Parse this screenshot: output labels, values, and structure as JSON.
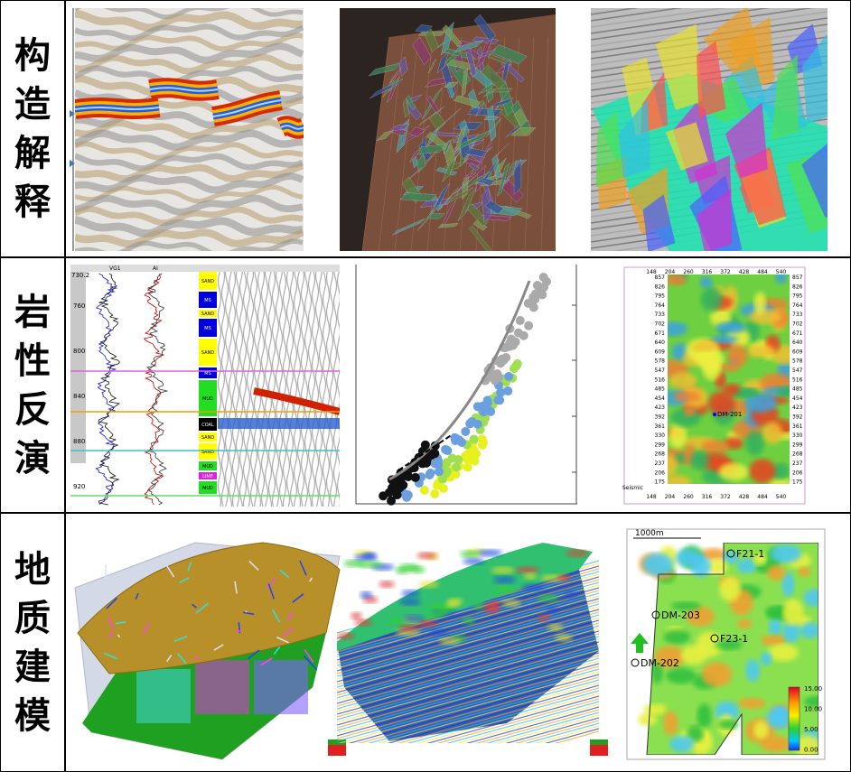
{
  "rows": [
    {
      "label": "构造解释"
    },
    {
      "label": "岩性反演",
      "well_log": {
        "top_depth": "730.2",
        "headers": [
          "VG1",
          "AI"
        ],
        "depth_ticks": [
          "760",
          "800",
          "840",
          "880",
          "920"
        ],
        "lithology": [
          "SAND",
          "MS",
          "SAND",
          "MS",
          "SAND",
          "MS",
          "MUD",
          "COAL",
          "SAND",
          "SAND",
          "MUD",
          "LIME",
          "MUD"
        ]
      },
      "map": {
        "x_ticks": [
          "148",
          "204",
          "260",
          "316",
          "372",
          "428",
          "484",
          "540"
        ],
        "y_ticks": [
          "857",
          "826",
          "795",
          "764",
          "733",
          "702",
          "671",
          "640",
          "609",
          "578",
          "547",
          "516",
          "485",
          "454",
          "423",
          "392",
          "361",
          "330",
          "299",
          "268",
          "237",
          "206",
          "175"
        ],
        "axis_label": "Seismic",
        "well": "DM-201"
      }
    },
    {
      "label": "地质建模",
      "map": {
        "scale": "1000m",
        "wells": [
          "F21-1",
          "DM-203",
          "F23-1",
          "DM-202"
        ],
        "colorbar": [
          "15.00",
          "10.00",
          "5.00",
          "0.00"
        ]
      }
    }
  ]
}
